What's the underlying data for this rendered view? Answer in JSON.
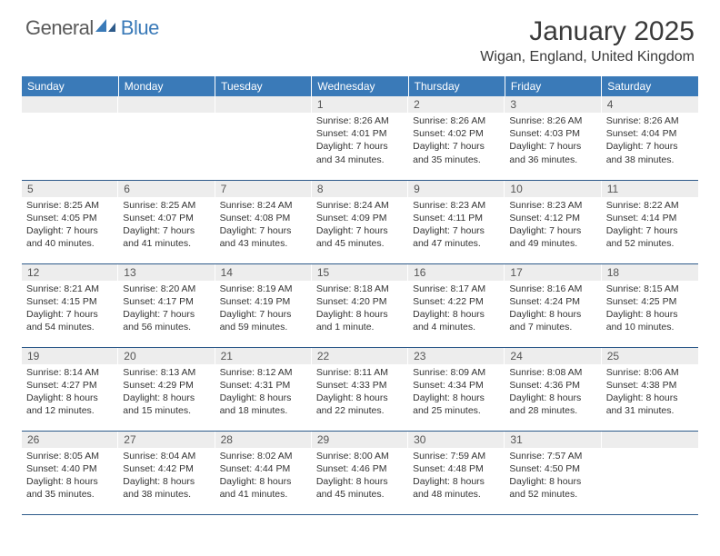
{
  "logo": {
    "gray": "General",
    "blue": "Blue"
  },
  "title": "January 2025",
  "location": "Wigan, England, United Kingdom",
  "colors": {
    "header_bg": "#3a7ab8",
    "header_text": "#ffffff",
    "daynum_bg": "#ededed",
    "border": "#2d5a8a",
    "text": "#333333"
  },
  "weekdays": [
    "Sunday",
    "Monday",
    "Tuesday",
    "Wednesday",
    "Thursday",
    "Friday",
    "Saturday"
  ],
  "weeks": [
    [
      {
        "n": "",
        "lines": [
          "",
          "",
          "",
          ""
        ]
      },
      {
        "n": "",
        "lines": [
          "",
          "",
          "",
          ""
        ]
      },
      {
        "n": "",
        "lines": [
          "",
          "",
          "",
          ""
        ]
      },
      {
        "n": "1",
        "lines": [
          "Sunrise: 8:26 AM",
          "Sunset: 4:01 PM",
          "Daylight: 7 hours",
          "and 34 minutes."
        ]
      },
      {
        "n": "2",
        "lines": [
          "Sunrise: 8:26 AM",
          "Sunset: 4:02 PM",
          "Daylight: 7 hours",
          "and 35 minutes."
        ]
      },
      {
        "n": "3",
        "lines": [
          "Sunrise: 8:26 AM",
          "Sunset: 4:03 PM",
          "Daylight: 7 hours",
          "and 36 minutes."
        ]
      },
      {
        "n": "4",
        "lines": [
          "Sunrise: 8:26 AM",
          "Sunset: 4:04 PM",
          "Daylight: 7 hours",
          "and 38 minutes."
        ]
      }
    ],
    [
      {
        "n": "5",
        "lines": [
          "Sunrise: 8:25 AM",
          "Sunset: 4:05 PM",
          "Daylight: 7 hours",
          "and 40 minutes."
        ]
      },
      {
        "n": "6",
        "lines": [
          "Sunrise: 8:25 AM",
          "Sunset: 4:07 PM",
          "Daylight: 7 hours",
          "and 41 minutes."
        ]
      },
      {
        "n": "7",
        "lines": [
          "Sunrise: 8:24 AM",
          "Sunset: 4:08 PM",
          "Daylight: 7 hours",
          "and 43 minutes."
        ]
      },
      {
        "n": "8",
        "lines": [
          "Sunrise: 8:24 AM",
          "Sunset: 4:09 PM",
          "Daylight: 7 hours",
          "and 45 minutes."
        ]
      },
      {
        "n": "9",
        "lines": [
          "Sunrise: 8:23 AM",
          "Sunset: 4:11 PM",
          "Daylight: 7 hours",
          "and 47 minutes."
        ]
      },
      {
        "n": "10",
        "lines": [
          "Sunrise: 8:23 AM",
          "Sunset: 4:12 PM",
          "Daylight: 7 hours",
          "and 49 minutes."
        ]
      },
      {
        "n": "11",
        "lines": [
          "Sunrise: 8:22 AM",
          "Sunset: 4:14 PM",
          "Daylight: 7 hours",
          "and 52 minutes."
        ]
      }
    ],
    [
      {
        "n": "12",
        "lines": [
          "Sunrise: 8:21 AM",
          "Sunset: 4:15 PM",
          "Daylight: 7 hours",
          "and 54 minutes."
        ]
      },
      {
        "n": "13",
        "lines": [
          "Sunrise: 8:20 AM",
          "Sunset: 4:17 PM",
          "Daylight: 7 hours",
          "and 56 minutes."
        ]
      },
      {
        "n": "14",
        "lines": [
          "Sunrise: 8:19 AM",
          "Sunset: 4:19 PM",
          "Daylight: 7 hours",
          "and 59 minutes."
        ]
      },
      {
        "n": "15",
        "lines": [
          "Sunrise: 8:18 AM",
          "Sunset: 4:20 PM",
          "Daylight: 8 hours",
          "and 1 minute."
        ]
      },
      {
        "n": "16",
        "lines": [
          "Sunrise: 8:17 AM",
          "Sunset: 4:22 PM",
          "Daylight: 8 hours",
          "and 4 minutes."
        ]
      },
      {
        "n": "17",
        "lines": [
          "Sunrise: 8:16 AM",
          "Sunset: 4:24 PM",
          "Daylight: 8 hours",
          "and 7 minutes."
        ]
      },
      {
        "n": "18",
        "lines": [
          "Sunrise: 8:15 AM",
          "Sunset: 4:25 PM",
          "Daylight: 8 hours",
          "and 10 minutes."
        ]
      }
    ],
    [
      {
        "n": "19",
        "lines": [
          "Sunrise: 8:14 AM",
          "Sunset: 4:27 PM",
          "Daylight: 8 hours",
          "and 12 minutes."
        ]
      },
      {
        "n": "20",
        "lines": [
          "Sunrise: 8:13 AM",
          "Sunset: 4:29 PM",
          "Daylight: 8 hours",
          "and 15 minutes."
        ]
      },
      {
        "n": "21",
        "lines": [
          "Sunrise: 8:12 AM",
          "Sunset: 4:31 PM",
          "Daylight: 8 hours",
          "and 18 minutes."
        ]
      },
      {
        "n": "22",
        "lines": [
          "Sunrise: 8:11 AM",
          "Sunset: 4:33 PM",
          "Daylight: 8 hours",
          "and 22 minutes."
        ]
      },
      {
        "n": "23",
        "lines": [
          "Sunrise: 8:09 AM",
          "Sunset: 4:34 PM",
          "Daylight: 8 hours",
          "and 25 minutes."
        ]
      },
      {
        "n": "24",
        "lines": [
          "Sunrise: 8:08 AM",
          "Sunset: 4:36 PM",
          "Daylight: 8 hours",
          "and 28 minutes."
        ]
      },
      {
        "n": "25",
        "lines": [
          "Sunrise: 8:06 AM",
          "Sunset: 4:38 PM",
          "Daylight: 8 hours",
          "and 31 minutes."
        ]
      }
    ],
    [
      {
        "n": "26",
        "lines": [
          "Sunrise: 8:05 AM",
          "Sunset: 4:40 PM",
          "Daylight: 8 hours",
          "and 35 minutes."
        ]
      },
      {
        "n": "27",
        "lines": [
          "Sunrise: 8:04 AM",
          "Sunset: 4:42 PM",
          "Daylight: 8 hours",
          "and 38 minutes."
        ]
      },
      {
        "n": "28",
        "lines": [
          "Sunrise: 8:02 AM",
          "Sunset: 4:44 PM",
          "Daylight: 8 hours",
          "and 41 minutes."
        ]
      },
      {
        "n": "29",
        "lines": [
          "Sunrise: 8:00 AM",
          "Sunset: 4:46 PM",
          "Daylight: 8 hours",
          "and 45 minutes."
        ]
      },
      {
        "n": "30",
        "lines": [
          "Sunrise: 7:59 AM",
          "Sunset: 4:48 PM",
          "Daylight: 8 hours",
          "and 48 minutes."
        ]
      },
      {
        "n": "31",
        "lines": [
          "Sunrise: 7:57 AM",
          "Sunset: 4:50 PM",
          "Daylight: 8 hours",
          "and 52 minutes."
        ]
      },
      {
        "n": "",
        "lines": [
          "",
          "",
          "",
          ""
        ]
      }
    ]
  ]
}
